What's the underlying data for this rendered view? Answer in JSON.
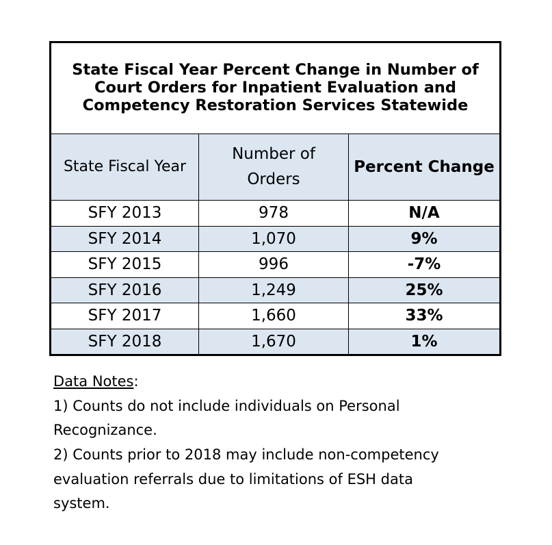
{
  "table": {
    "title_lines": [
      "State Fiscal Year Percent Change in Number of",
      "Court Orders for Inpatient Evaluation and",
      "Competency Restoration Services Statewide"
    ],
    "headers": {
      "col1": "State Fiscal Year",
      "col2_line1": "Number of",
      "col2_line2": "Orders",
      "col3": "Percent Change"
    },
    "rows": [
      {
        "year": "SFY 2013",
        "orders": "978",
        "change": "N/A"
      },
      {
        "year": "SFY 2014",
        "orders": "1,070",
        "change": "9%"
      },
      {
        "year": "SFY 2015",
        "orders": "996",
        "change": "-7%"
      },
      {
        "year": "SFY 2016",
        "orders": "1,249",
        "change": "25%"
      },
      {
        "year": "SFY 2017",
        "orders": "1,660",
        "change": "33%"
      },
      {
        "year": "SFY 2018",
        "orders": "1,670",
        "change": "1%"
      }
    ]
  },
  "notes": {
    "heading": "Data Notes",
    "heading_suffix": ":",
    "note1_line1": "1) Counts do not include individuals on Personal",
    "note1_line2": "Recognizance.",
    "note2_line1": "2) Counts prior to 2018 may include non-competency",
    "note2_line2": "evaluation referrals due to limitations of ESH data",
    "note2_line3": "system."
  },
  "colors": {
    "header_fill": "#dce6f1",
    "shaded_row_fill": "#dce6f1",
    "border": "#000000"
  }
}
